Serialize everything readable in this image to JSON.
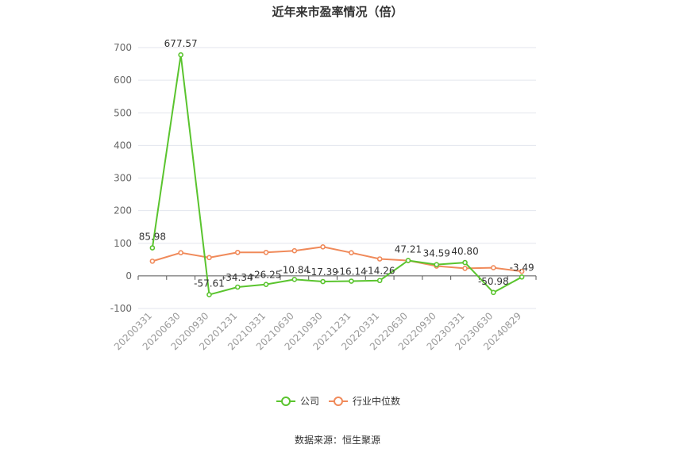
{
  "chart_data": {
    "type": "line",
    "title": "近年来市盈率情况（倍）",
    "categories": [
      "20200331",
      "20200630",
      "20200930",
      "20201231",
      "20210331",
      "20210630",
      "20210930",
      "20211231",
      "20220331",
      "20220630",
      "20220930",
      "20230331",
      "20230630",
      "20240829"
    ],
    "series": [
      {
        "name": "公司",
        "color": "#5ac42e",
        "values": [
          85.98,
          677.57,
          -57.61,
          -34.34,
          -26.25,
          -10.84,
          -17.39,
          -16.14,
          -14.26,
          47.21,
          34.59,
          40.8,
          -50.98,
          -3.49
        ],
        "labels": [
          "85.98",
          "677.57",
          "-57.61",
          "-34.34",
          "-26.25",
          "-10.84",
          "-17.39",
          "-16.14",
          "-14.26",
          "47.21",
          "34.59",
          "40.80",
          "-50.98",
          "-3.49"
        ]
      },
      {
        "name": "行业中位数",
        "color": "#f08a5a",
        "values": [
          45,
          71,
          56,
          72,
          72,
          77,
          89,
          71,
          52,
          47,
          30,
          23,
          25,
          14
        ]
      }
    ],
    "ylim": [
      -100,
      700
    ],
    "yticks": [
      -100,
      0,
      100,
      200,
      300,
      400,
      500,
      600,
      700
    ],
    "grid": true,
    "legend_position": "bottom-center"
  },
  "source_text": "数据来源：恒生聚源"
}
